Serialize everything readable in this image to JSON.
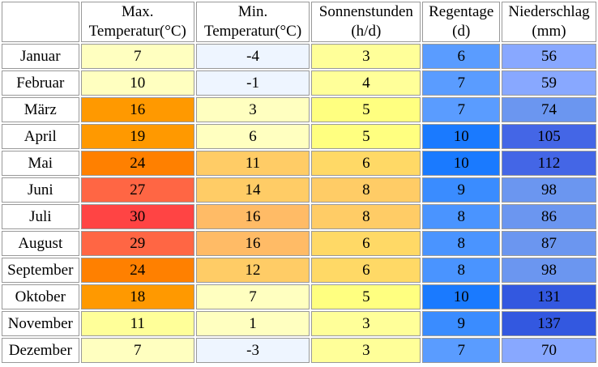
{
  "headers": {
    "max_temp": {
      "line1": "Max.",
      "line2": "Temperatur(°C)"
    },
    "min_temp": {
      "line1": "Min.",
      "line2": "Temperatur(°C)"
    },
    "sun": {
      "line1": "Sonnenstunden",
      "line2": "(h/d)"
    },
    "rain_days": {
      "line1": "Regentage",
      "line2": "(d)"
    },
    "precip": {
      "line1": "Niederschlag",
      "line2": "(mm)"
    }
  },
  "rows": [
    {
      "month": "Januar",
      "max": "7",
      "min": "-4",
      "sun": "3",
      "rain_days": "6",
      "precip": "56",
      "colors": {
        "max": "#ffffc0",
        "min": "#eef5ff",
        "sun": "#ffff99",
        "rain_days": "#5a9cff",
        "precip": "#88a8ff"
      }
    },
    {
      "month": "Februar",
      "max": "10",
      "min": "-1",
      "sun": "4",
      "rain_days": "7",
      "precip": "59",
      "colors": {
        "max": "#ffffc0",
        "min": "#eef5ff",
        "sun": "#ffff99",
        "rain_days": "#5a9cff",
        "precip": "#88a8ff"
      }
    },
    {
      "month": "März",
      "max": "16",
      "min": "3",
      "sun": "5",
      "rain_days": "7",
      "precip": "74",
      "colors": {
        "max": "#ff9900",
        "min": "#ffffc0",
        "sun": "#ffff80",
        "rain_days": "#5a9cff",
        "precip": "#6b96f0"
      }
    },
    {
      "month": "April",
      "max": "19",
      "min": "6",
      "sun": "5",
      "rain_days": "10",
      "precip": "105",
      "colors": {
        "max": "#ff9900",
        "min": "#ffffc0",
        "sun": "#ffff80",
        "rain_days": "#1a7aff",
        "precip": "#4466e6"
      }
    },
    {
      "month": "Mai",
      "max": "24",
      "min": "11",
      "sun": "6",
      "rain_days": "10",
      "precip": "112",
      "colors": {
        "max": "#ff8000",
        "min": "#ffcc66",
        "sun": "#ffd966",
        "rain_days": "#1a7aff",
        "precip": "#4466e6"
      }
    },
    {
      "month": "Juni",
      "max": "27",
      "min": "14",
      "sun": "8",
      "rain_days": "9",
      "precip": "98",
      "colors": {
        "max": "#ff6644",
        "min": "#ffcc66",
        "sun": "#ffcc66",
        "rain_days": "#3a8cff",
        "precip": "#6b96f0"
      }
    },
    {
      "month": "Juli",
      "max": "30",
      "min": "16",
      "sun": "8",
      "rain_days": "8",
      "precip": "86",
      "colors": {
        "max": "#ff4444",
        "min": "#ffbb66",
        "sun": "#ffcc66",
        "rain_days": "#4a94ff",
        "precip": "#6b96f0"
      }
    },
    {
      "month": "August",
      "max": "29",
      "min": "16",
      "sun": "6",
      "rain_days": "8",
      "precip": "87",
      "colors": {
        "max": "#ff6644",
        "min": "#ffbb66",
        "sun": "#ffd966",
        "rain_days": "#4a94ff",
        "precip": "#6b96f0"
      }
    },
    {
      "month": "September",
      "max": "24",
      "min": "12",
      "sun": "6",
      "rain_days": "8",
      "precip": "98",
      "colors": {
        "max": "#ff8000",
        "min": "#ffcc66",
        "sun": "#ffd966",
        "rain_days": "#4a94ff",
        "precip": "#6b96f0"
      }
    },
    {
      "month": "Oktober",
      "max": "18",
      "min": "7",
      "sun": "5",
      "rain_days": "10",
      "precip": "131",
      "colors": {
        "max": "#ff9900",
        "min": "#ffffc0",
        "sun": "#ffff80",
        "rain_days": "#1a7aff",
        "precip": "#3358e0"
      }
    },
    {
      "month": "November",
      "max": "11",
      "min": "1",
      "sun": "3",
      "rain_days": "9",
      "precip": "137",
      "colors": {
        "max": "#ffff99",
        "min": "#ffffc0",
        "sun": "#ffff99",
        "rain_days": "#3a8cff",
        "precip": "#3358e0"
      }
    },
    {
      "month": "Dezember",
      "max": "7",
      "min": "-3",
      "sun": "3",
      "rain_days": "7",
      "precip": "70",
      "colors": {
        "max": "#ffffc0",
        "min": "#eef5ff",
        "sun": "#ffff99",
        "rain_days": "#5a9cff",
        "precip": "#88a8ff"
      }
    }
  ]
}
